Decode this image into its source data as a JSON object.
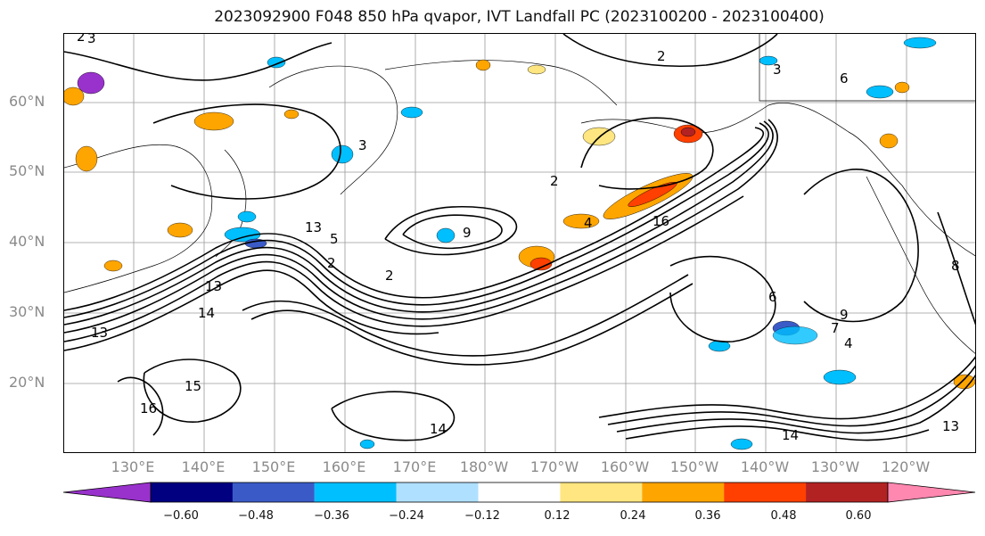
{
  "title": "2023092900 F048 850 hPa qvapor, IVT Landfall PC (2023100200 - 2023100400)",
  "lat_labels": [
    "60°N",
    "50°N",
    "40°N",
    "30°N",
    "20°N"
  ],
  "lon_labels": [
    "130°E",
    "140°E",
    "150°E",
    "160°E",
    "170°E",
    "180°W",
    "170°W",
    "160°W",
    "150°W",
    "140°W",
    "130°W",
    "120°W"
  ],
  "contour_labels": [
    "2",
    "3",
    "2",
    "6",
    "3",
    "2",
    "4",
    "16",
    "2",
    "9",
    "5",
    "13",
    "2",
    "13",
    "14",
    "8",
    "9",
    "6",
    "13",
    "15",
    "16",
    "14",
    "14",
    "13",
    "7",
    "4",
    "3"
  ],
  "colorbar": {
    "ticks": [
      "−0.60",
      "−0.48",
      "−0.36",
      "−0.24",
      "−0.12",
      "0.12",
      "0.24",
      "0.36",
      "0.48",
      "0.60"
    ],
    "colors": [
      "#9932cc",
      "#000080",
      "#3a5bc7",
      "#00bfff",
      "#b0e0ff",
      "#ffffff",
      "#ffe680",
      "#ffa500",
      "#ff4000",
      "#b22222",
      "#ff88b0"
    ]
  }
}
